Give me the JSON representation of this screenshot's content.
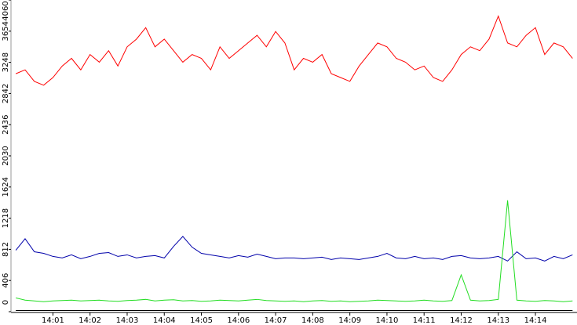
{
  "chart_data": {
    "type": "line",
    "x": [
      0,
      0.25,
      0.5,
      0.75,
      1,
      1.25,
      1.5,
      1.75,
      2,
      2.25,
      2.5,
      2.75,
      3,
      3.25,
      3.5,
      3.75,
      4,
      4.25,
      4.5,
      4.75,
      5,
      5.25,
      5.5,
      5.75,
      6,
      6.25,
      6.5,
      6.75,
      7,
      7.25,
      7.5,
      7.75,
      8,
      8.25,
      8.5,
      8.75,
      9,
      9.25,
      9.5,
      9.75,
      10,
      10.25,
      10.5,
      10.75,
      11,
      11.25,
      11.5,
      11.75,
      12,
      12.25,
      12.5,
      12.75,
      13,
      13.25,
      13.5,
      13.75,
      14,
      14.25,
      14.5,
      14.75,
      15
    ],
    "series": [
      {
        "color": "#ff0000",
        "values": [
          3100,
          3150,
          3000,
          2950,
          3050,
          3200,
          3300,
          3150,
          3350,
          3250,
          3400,
          3200,
          3450,
          3550,
          3700,
          3450,
          3550,
          3400,
          3250,
          3350,
          3300,
          3150,
          3450,
          3300,
          3400,
          3500,
          3600,
          3450,
          3650,
          3500,
          3150,
          3300,
          3250,
          3350,
          3100,
          3050,
          3000,
          3200,
          3350,
          3500,
          3450,
          3300,
          3250,
          3150,
          3200,
          3050,
          3000,
          3150,
          3350,
          3450,
          3400,
          3550,
          3850,
          3500,
          3450,
          3600,
          3700,
          3350,
          3500,
          3450,
          3300
        ]
      },
      {
        "color": "#0000aa",
        "values": [
          800,
          950,
          780,
          760,
          720,
          700,
          740,
          690,
          720,
          760,
          770,
          720,
          740,
          700,
          720,
          730,
          700,
          850,
          980,
          840,
          760,
          740,
          720,
          700,
          730,
          710,
          750,
          720,
          690,
          700,
          700,
          690,
          700,
          710,
          680,
          700,
          690,
          680,
          700,
          720,
          760,
          700,
          690,
          720,
          690,
          700,
          680,
          720,
          730,
          700,
          690,
          700,
          720,
          660,
          780,
          690,
          700,
          660,
          720,
          690,
          740
        ]
      },
      {
        "color": "#22dd22",
        "values": [
          180,
          150,
          140,
          130,
          140,
          145,
          150,
          140,
          145,
          150,
          140,
          135,
          145,
          150,
          160,
          140,
          150,
          155,
          140,
          145,
          135,
          140,
          150,
          145,
          140,
          150,
          160,
          145,
          140,
          135,
          140,
          130,
          140,
          145,
          135,
          140,
          130,
          135,
          140,
          150,
          145,
          140,
          135,
          140,
          150,
          140,
          135,
          145,
          480,
          150,
          140,
          145,
          160,
          1450,
          150,
          140,
          135,
          145,
          140,
          130,
          140
        ]
      },
      {
        "color": "#000000",
        "values": [
          15,
          15,
          15,
          15,
          15,
          15,
          15,
          15,
          15,
          15,
          15,
          15,
          15,
          15,
          15,
          15,
          15,
          15,
          15,
          15,
          15,
          15,
          15,
          15,
          15,
          15,
          15,
          15,
          15,
          15,
          15,
          15,
          15,
          15,
          15,
          15,
          15,
          15,
          15,
          15,
          15,
          15,
          15,
          15,
          15,
          15,
          15,
          15,
          15,
          15,
          15,
          15,
          15,
          15,
          15,
          15,
          15,
          15,
          15,
          15,
          15
        ]
      }
    ],
    "xlim": [
      -0.13,
      15.12
    ],
    "xticks": [
      {
        "value": 1,
        "label": "14:01"
      },
      {
        "value": 2,
        "label": "14:02"
      },
      {
        "value": 3,
        "label": "14:03"
      },
      {
        "value": 4,
        "label": "14:04"
      },
      {
        "value": 5,
        "label": "14:05"
      },
      {
        "value": 6,
        "label": "14:06"
      },
      {
        "value": 7,
        "label": "14:07"
      },
      {
        "value": 8,
        "label": "14:08"
      },
      {
        "value": 9,
        "label": "14:09"
      },
      {
        "value": 10,
        "label": "14:10"
      },
      {
        "value": 11,
        "label": "14:11"
      },
      {
        "value": 12,
        "label": "14:12"
      },
      {
        "value": 13,
        "label": "14:13"
      },
      {
        "value": 14,
        "label": "14:14"
      }
    ],
    "ylim": [
      0,
      4060
    ],
    "yticks": [
      0,
      406,
      812,
      1218,
      1624,
      2030,
      2436,
      2842,
      3248,
      3654,
      4060
    ]
  }
}
